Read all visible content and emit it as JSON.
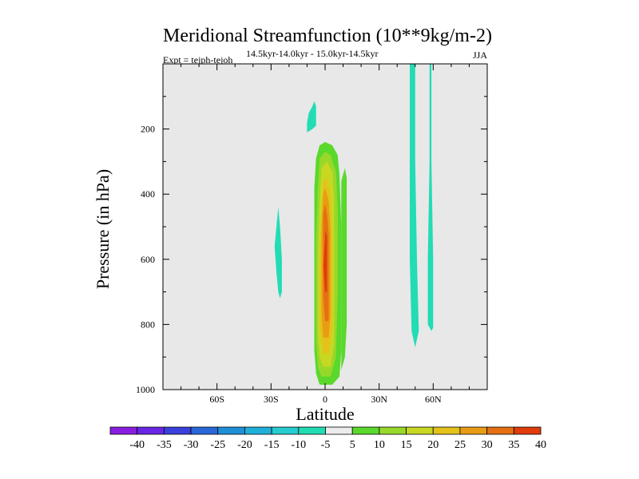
{
  "chart_data": {
    "type": "contour",
    "title": "Meridional Streamfunction (10**9kg/m-2)",
    "left_label": "Expt = tejph-tejoh",
    "center_label": "14.5kyr-14.0kyr - 15.0kyr-14.5kyr",
    "right_label": "JJA",
    "xlabel": "Latitude",
    "ylabel": "Pressure (in hPa)",
    "xlim": [
      -90,
      90
    ],
    "ylim": [
      0,
      1000
    ],
    "y_inverted": true,
    "x_ticks": [
      {
        "value": -60,
        "label": "60S"
      },
      {
        "value": -30,
        "label": "30S"
      },
      {
        "value": 0,
        "label": "0"
      },
      {
        "value": 30,
        "label": "30N"
      },
      {
        "value": 60,
        "label": "60N"
      }
    ],
    "y_ticks": [
      {
        "value": 200,
        "label": "200"
      },
      {
        "value": 400,
        "label": "400"
      },
      {
        "value": 600,
        "label": "600"
      },
      {
        "value": 800,
        "label": "800"
      },
      {
        "value": 1000,
        "label": "1000"
      }
    ],
    "background_color": "#e8e8e8",
    "colorbar": {
      "labels": [
        "-40",
        "-35",
        "-30",
        "-25",
        "-20",
        "-15",
        "-10",
        "-5",
        "5",
        "10",
        "15",
        "20",
        "25",
        "30",
        "35",
        "40"
      ],
      "colors": [
        "#8a1ee0",
        "#6a26e6",
        "#3a40dc",
        "#2a68d8",
        "#1e90d8",
        "#1fb0da",
        "#26ccd0",
        "#22dcb4",
        "#ececec",
        "#5ad82c",
        "#98d82a",
        "#c8d822",
        "#e4c21a",
        "#e89c14",
        "#e47012",
        "#e03c0c"
      ]
    },
    "contours": [
      {
        "name": "contour-main-level-5",
        "color": "#5ad82c",
        "points": [
          [
            -3,
            985
          ],
          [
            4,
            985
          ],
          [
            8,
            960
          ],
          [
            9,
            880
          ],
          [
            9,
            500
          ],
          [
            8,
            340
          ],
          [
            7,
            280
          ],
          [
            4,
            250
          ],
          [
            0,
            240
          ],
          [
            -3,
            250
          ],
          [
            -5,
            290
          ],
          [
            -6,
            380
          ],
          [
            -6,
            500
          ],
          [
            -6,
            880
          ],
          [
            -5,
            950
          ]
        ]
      },
      {
        "name": "contour-main-level-5-side",
        "color": "#5ad82c",
        "points": [
          [
            9,
            360
          ],
          [
            11,
            320
          ],
          [
            12,
            350
          ],
          [
            12,
            520
          ],
          [
            12,
            800
          ],
          [
            11,
            900
          ],
          [
            9,
            940
          ]
        ]
      },
      {
        "name": "contour-main-level-10",
        "color": "#98d82a",
        "points": [
          [
            -2,
            960
          ],
          [
            3,
            960
          ],
          [
            6,
            900
          ],
          [
            7,
            700
          ],
          [
            7,
            450
          ],
          [
            6,
            330
          ],
          [
            3,
            280
          ],
          [
            0,
            270
          ],
          [
            -3,
            290
          ],
          [
            -4,
            380
          ],
          [
            -5,
            550
          ],
          [
            -5,
            850
          ],
          [
            -4,
            930
          ]
        ]
      },
      {
        "name": "contour-main-level-15",
        "color": "#c8d822",
        "points": [
          [
            -1,
            930
          ],
          [
            3,
            930
          ],
          [
            5,
            860
          ],
          [
            5,
            600
          ],
          [
            5,
            420
          ],
          [
            4,
            330
          ],
          [
            1,
            300
          ],
          [
            -2,
            320
          ],
          [
            -3,
            420
          ],
          [
            -4,
            600
          ],
          [
            -4,
            830
          ],
          [
            -3,
            900
          ]
        ]
      },
      {
        "name": "contour-main-level-20",
        "color": "#e4c21a",
        "points": [
          [
            -1,
            890
          ],
          [
            2,
            890
          ],
          [
            4,
            810
          ],
          [
            4,
            550
          ],
          [
            3,
            400
          ],
          [
            1,
            350
          ],
          [
            -1,
            360
          ],
          [
            -2,
            450
          ],
          [
            -3,
            620
          ],
          [
            -3,
            810
          ]
        ]
      },
      {
        "name": "contour-main-level-25",
        "color": "#e89c14",
        "points": [
          [
            -1,
            840
          ],
          [
            2,
            840
          ],
          [
            3,
            760
          ],
          [
            3,
            520
          ],
          [
            2,
            420
          ],
          [
            0,
            380
          ],
          [
            -1,
            400
          ],
          [
            -2,
            500
          ],
          [
            -2,
            760
          ]
        ]
      },
      {
        "name": "contour-main-level-30",
        "color": "#e47012",
        "points": [
          [
            0,
            790
          ],
          [
            2,
            790
          ],
          [
            2,
            700
          ],
          [
            2,
            520
          ],
          [
            1,
            460
          ],
          [
            0,
            430
          ],
          [
            -1,
            460
          ],
          [
            -1,
            560
          ],
          [
            -1,
            720
          ]
        ]
      },
      {
        "name": "contour-main-level-35",
        "color": "#e03c0c",
        "points": [
          [
            0,
            700
          ],
          [
            1,
            700
          ],
          [
            1,
            600
          ],
          [
            1,
            530
          ],
          [
            0,
            510
          ],
          [
            0,
            540
          ],
          [
            -1,
            620
          ]
        ]
      },
      {
        "name": "contour-top-level-minus5",
        "color": "#22dcb4",
        "points": [
          [
            -10,
            210
          ],
          [
            -7,
            200
          ],
          [
            -5,
            190
          ],
          [
            -5,
            160
          ],
          [
            -5,
            130
          ],
          [
            -6,
            115
          ],
          [
            -7,
            130
          ],
          [
            -9,
            150
          ],
          [
            -10,
            180
          ]
        ]
      },
      {
        "name": "contour-left-level-minus5",
        "color": "#22dcb4",
        "points": [
          [
            -25,
            720
          ],
          [
            -24,
            700
          ],
          [
            -24,
            600
          ],
          [
            -25,
            500
          ],
          [
            -26,
            440
          ],
          [
            -27,
            500
          ],
          [
            -28,
            560
          ],
          [
            -27,
            640
          ],
          [
            -26,
            700
          ]
        ]
      },
      {
        "name": "contour-right1-level-minus5",
        "color": "#22dcb4",
        "points": [
          [
            47,
            0
          ],
          [
            50,
            0
          ],
          [
            50,
            300
          ],
          [
            51,
            600
          ],
          [
            52,
            820
          ],
          [
            50,
            870
          ],
          [
            48,
            820
          ],
          [
            47,
            600
          ],
          [
            47,
            300
          ]
        ]
      },
      {
        "name": "contour-right2-level-minus5",
        "color": "#22dcb4",
        "points": [
          [
            58,
            0
          ],
          [
            59,
            0
          ],
          [
            59,
            300
          ],
          [
            60,
            600
          ],
          [
            60,
            810
          ],
          [
            59,
            820
          ],
          [
            57,
            800
          ],
          [
            57,
            600
          ],
          [
            58,
            300
          ]
        ]
      }
    ]
  }
}
